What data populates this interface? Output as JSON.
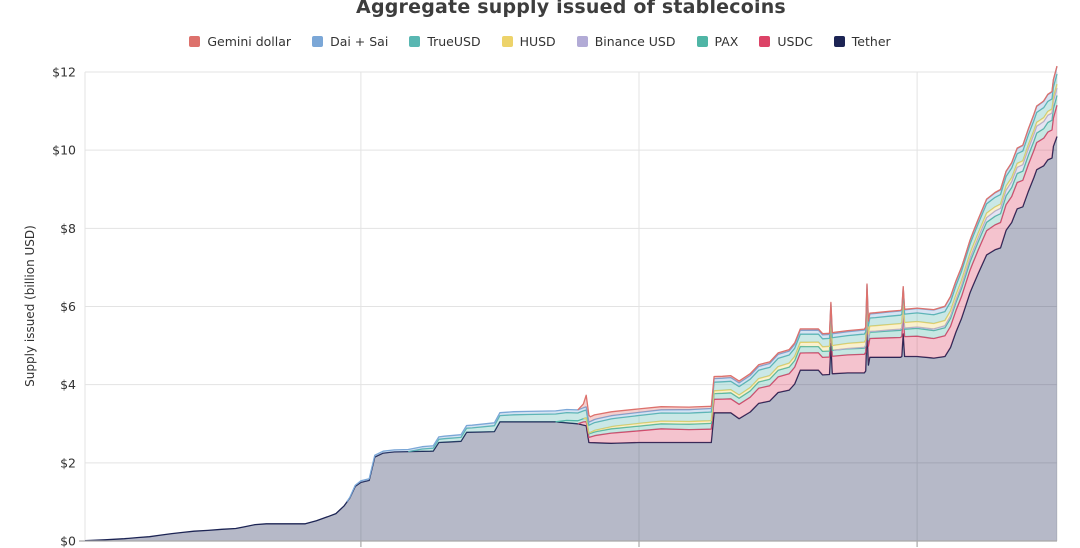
{
  "chart_data": {
    "type": "area",
    "stacked": true,
    "title": "Aggregate supply issued of stablecoins",
    "ylabel": "Supply issued (billion USD)",
    "legend_position": "top",
    "x_domain": [
      2017.008,
      2020.503
    ],
    "ylim": [
      0,
      12
    ],
    "y_ticks": [
      {
        "label": "$0",
        "value": 0
      },
      {
        "label": "$2",
        "value": 2
      },
      {
        "label": "$4",
        "value": 4
      },
      {
        "label": "$6",
        "value": 6
      },
      {
        "label": "$8",
        "value": 8
      },
      {
        "label": "$10",
        "value": 10
      },
      {
        "label": "$12",
        "value": 12
      }
    ],
    "x_gridlines": [
      2018,
      2019,
      2020
    ],
    "grid_color": "#e3e3e3",
    "axis_color": "#a9a9a9",
    "text_color": "#333333",
    "fill_alpha": 0.32,
    "stack_order_bottom_to_top": [
      "Tether",
      "USDC",
      "PAX",
      "Binance USD",
      "HUSD",
      "TrueUSD",
      "Dai + Sai",
      "Gemini dollar"
    ],
    "series": [
      {
        "name": "Gemini dollar",
        "slug": "gemini-dollar",
        "color": "#dd716c",
        "points": [
          [
            2018.78,
            0.0
          ],
          [
            2018.8,
            0.1
          ],
          [
            2018.81,
            0.3
          ],
          [
            2018.825,
            0.12
          ],
          [
            2018.9,
            0.1
          ],
          [
            2019.0,
            0.09
          ],
          [
            2019.15,
            0.07
          ],
          [
            2019.3,
            0.05
          ],
          [
            2019.5,
            0.04
          ],
          [
            2019.7,
            0.03
          ],
          [
            2019.85,
            0.02
          ],
          [
            2020.0,
            0.01
          ],
          [
            2020.503,
            0.01
          ]
        ]
      },
      {
        "name": "Dai + Sai",
        "slug": "dai-sai",
        "color": "#7ba7d7",
        "points": [
          [
            2017.95,
            0.01
          ],
          [
            2018.0,
            0.04
          ],
          [
            2018.1,
            0.05
          ],
          [
            2018.25,
            0.06
          ],
          [
            2018.4,
            0.07
          ],
          [
            2018.6,
            0.08
          ],
          [
            2018.8,
            0.08
          ],
          [
            2019.0,
            0.08
          ],
          [
            2019.25,
            0.09
          ],
          [
            2019.5,
            0.1
          ],
          [
            2019.75,
            0.1
          ],
          [
            2019.95,
            0.11
          ],
          [
            2020.05,
            0.12
          ],
          [
            2020.12,
            0.13
          ],
          [
            2020.17,
            0.09
          ],
          [
            2020.25,
            0.11
          ],
          [
            2020.35,
            0.13
          ],
          [
            2020.45,
            0.16
          ],
          [
            2020.503,
            0.19
          ]
        ]
      },
      {
        "name": "TrueUSD",
        "slug": "trueusd",
        "color": "#59b7b2",
        "points": [
          [
            2018.17,
            0.0
          ],
          [
            2018.22,
            0.06
          ],
          [
            2018.3,
            0.09
          ],
          [
            2018.4,
            0.11
          ],
          [
            2018.48,
            0.15
          ],
          [
            2018.55,
            0.18
          ],
          [
            2018.7,
            0.2
          ],
          [
            2018.85,
            0.2
          ],
          [
            2019.0,
            0.2
          ],
          [
            2019.25,
            0.22
          ],
          [
            2019.5,
            0.21
          ],
          [
            2019.75,
            0.2
          ],
          [
            2020.0,
            0.22
          ],
          [
            2020.25,
            0.24
          ],
          [
            2020.503,
            0.26
          ]
        ]
      },
      {
        "name": "HUSD",
        "slug": "husd",
        "color": "#edd36a",
        "points": [
          [
            2018.8,
            0.0
          ],
          [
            2018.84,
            0.04
          ],
          [
            2018.92,
            0.06
          ],
          [
            2019.0,
            0.07
          ],
          [
            2019.25,
            0.07
          ],
          [
            2019.45,
            0.09
          ],
          [
            2019.6,
            0.11
          ],
          [
            2019.75,
            0.13
          ],
          [
            2019.9,
            0.14
          ],
          [
            2020.05,
            0.14
          ],
          [
            2020.2,
            0.12
          ],
          [
            2020.35,
            0.1
          ],
          [
            2020.503,
            0.1
          ]
        ]
      },
      {
        "name": "Binance USD",
        "slug": "binance-usd",
        "color": "#b2abd6",
        "points": [
          [
            2019.7,
            0.0
          ],
          [
            2019.8,
            0.02
          ],
          [
            2019.95,
            0.03
          ],
          [
            2020.05,
            0.04
          ],
          [
            2020.12,
            0.06
          ],
          [
            2020.2,
            0.1
          ],
          [
            2020.3,
            0.14
          ],
          [
            2020.4,
            0.17
          ],
          [
            2020.503,
            0.19
          ]
        ]
      },
      {
        "name": "PAX",
        "slug": "pax",
        "color": "#4fb5a5",
        "points": [
          [
            2018.7,
            0.0
          ],
          [
            2018.74,
            0.06
          ],
          [
            2018.82,
            0.09
          ],
          [
            2018.9,
            0.11
          ],
          [
            2019.0,
            0.12
          ],
          [
            2019.2,
            0.14
          ],
          [
            2019.4,
            0.16
          ],
          [
            2019.55,
            0.17
          ],
          [
            2019.7,
            0.15
          ],
          [
            2019.85,
            0.16
          ],
          [
            2020.0,
            0.2
          ],
          [
            2020.2,
            0.21
          ],
          [
            2020.35,
            0.23
          ],
          [
            2020.503,
            0.25
          ]
        ]
      },
      {
        "name": "USDC",
        "slug": "usdc",
        "color": "#dc4367",
        "points": [
          [
            2018.78,
            0.0
          ],
          [
            2018.8,
            0.08
          ],
          [
            2018.84,
            0.18
          ],
          [
            2018.9,
            0.26
          ],
          [
            2019.0,
            0.3
          ],
          [
            2019.08,
            0.35
          ],
          [
            2019.18,
            0.33
          ],
          [
            2019.3,
            0.35
          ],
          [
            2019.4,
            0.38
          ],
          [
            2019.5,
            0.4
          ],
          [
            2019.58,
            0.44
          ],
          [
            2019.7,
            0.45
          ],
          [
            2019.82,
            0.48
          ],
          [
            2019.9,
            0.5
          ],
          [
            2020.0,
            0.52
          ],
          [
            2020.06,
            0.5
          ],
          [
            2020.1,
            0.53
          ],
          [
            2020.16,
            0.56
          ],
          [
            2020.22,
            0.6
          ],
          [
            2020.3,
            0.65
          ],
          [
            2020.38,
            0.68
          ],
          [
            2020.44,
            0.7
          ],
          [
            2020.49,
            0.72
          ],
          [
            2020.503,
            0.8
          ]
        ]
      },
      {
        "name": "Tether",
        "slug": "tether",
        "color": "#1c2454",
        "points": [
          [
            2017.008,
            0.01
          ],
          [
            2017.08,
            0.03
          ],
          [
            2017.15,
            0.06
          ],
          [
            2017.2,
            0.09
          ],
          [
            2017.24,
            0.11
          ],
          [
            2017.28,
            0.15
          ],
          [
            2017.32,
            0.19
          ],
          [
            2017.36,
            0.22
          ],
          [
            2017.4,
            0.25
          ],
          [
            2017.45,
            0.27
          ],
          [
            2017.5,
            0.3
          ],
          [
            2017.55,
            0.32
          ],
          [
            2017.58,
            0.36
          ],
          [
            2017.62,
            0.42
          ],
          [
            2017.66,
            0.44
          ],
          [
            2017.8,
            0.44
          ],
          [
            2017.84,
            0.52
          ],
          [
            2017.88,
            0.62
          ],
          [
            2017.91,
            0.7
          ],
          [
            2017.94,
            0.9
          ],
          [
            2017.96,
            1.1
          ],
          [
            2017.98,
            1.4
          ],
          [
            2018.0,
            1.5
          ],
          [
            2018.03,
            1.55
          ],
          [
            2018.05,
            2.15
          ],
          [
            2018.08,
            2.25
          ],
          [
            2018.12,
            2.28
          ],
          [
            2018.26,
            2.3
          ],
          [
            2018.28,
            2.52
          ],
          [
            2018.36,
            2.55
          ],
          [
            2018.38,
            2.78
          ],
          [
            2018.48,
            2.8
          ],
          [
            2018.5,
            3.05
          ],
          [
            2018.7,
            3.05
          ],
          [
            2018.78,
            3.0
          ],
          [
            2018.81,
            2.95
          ],
          [
            2018.82,
            2.52
          ],
          [
            2018.9,
            2.5
          ],
          [
            2019.0,
            2.52
          ],
          [
            2019.26,
            2.52
          ],
          [
            2019.27,
            3.28
          ],
          [
            2019.33,
            3.28
          ],
          [
            2019.36,
            3.13
          ],
          [
            2019.4,
            3.3
          ],
          [
            2019.43,
            3.52
          ],
          [
            2019.47,
            3.58
          ],
          [
            2019.5,
            3.8
          ],
          [
            2019.54,
            3.86
          ],
          [
            2019.56,
            4.02
          ],
          [
            2019.58,
            4.37
          ],
          [
            2019.645,
            4.37
          ],
          [
            2019.66,
            4.25
          ],
          [
            2019.685,
            4.26
          ],
          [
            2019.69,
            5.05
          ],
          [
            2019.695,
            4.28
          ],
          [
            2019.75,
            4.3
          ],
          [
            2019.81,
            4.3
          ],
          [
            2019.815,
            4.35
          ],
          [
            2019.82,
            5.45
          ],
          [
            2019.825,
            4.5
          ],
          [
            2019.83,
            4.7
          ],
          [
            2019.94,
            4.7
          ],
          [
            2019.945,
            4.72
          ],
          [
            2019.95,
            5.3
          ],
          [
            2019.955,
            4.72
          ],
          [
            2020.0,
            4.72
          ],
          [
            2020.06,
            4.68
          ],
          [
            2020.1,
            4.72
          ],
          [
            2020.12,
            4.95
          ],
          [
            2020.14,
            5.35
          ],
          [
            2020.16,
            5.7
          ],
          [
            2020.19,
            6.35
          ],
          [
            2020.22,
            6.85
          ],
          [
            2020.25,
            7.32
          ],
          [
            2020.28,
            7.45
          ],
          [
            2020.3,
            7.5
          ],
          [
            2020.32,
            7.95
          ],
          [
            2020.34,
            8.15
          ],
          [
            2020.36,
            8.5
          ],
          [
            2020.38,
            8.55
          ],
          [
            2020.4,
            8.95
          ],
          [
            2020.42,
            9.3
          ],
          [
            2020.43,
            9.5
          ],
          [
            2020.455,
            9.6
          ],
          [
            2020.47,
            9.75
          ],
          [
            2020.485,
            9.8
          ],
          [
            2020.49,
            10.1
          ],
          [
            2020.503,
            10.35
          ]
        ]
      }
    ]
  }
}
